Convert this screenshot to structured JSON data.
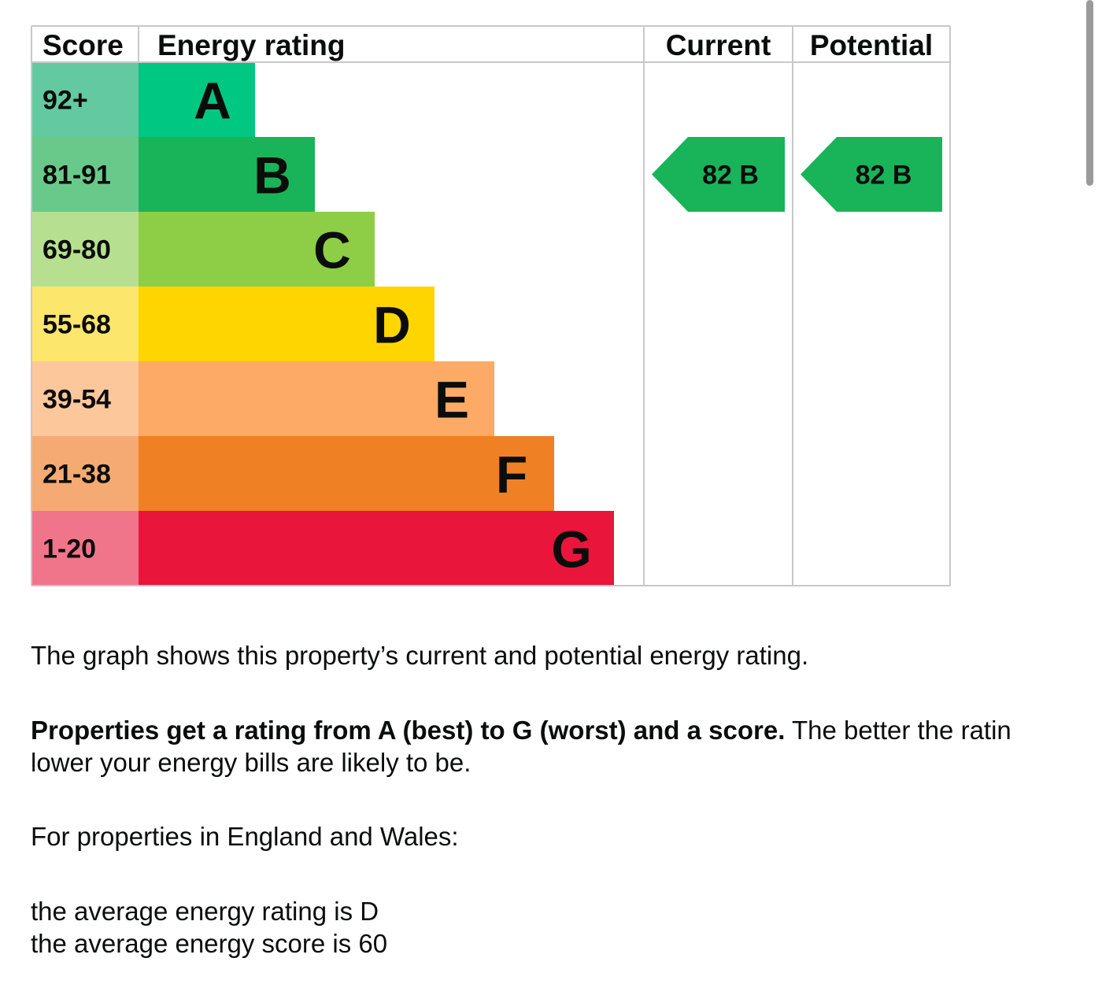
{
  "chart_data": {
    "type": "table",
    "headers": {
      "score": "Score",
      "rating": "Energy rating",
      "current": "Current",
      "potential": "Potential"
    },
    "bands": [
      {
        "range": "92+",
        "letter": "A",
        "color": "#00c781",
        "score_color": "#63c9a0"
      },
      {
        "range": "81-91",
        "letter": "B",
        "color": "#19b459",
        "score_color": "#69c98b"
      },
      {
        "range": "69-80",
        "letter": "C",
        "color": "#8dce46",
        "score_color": "#b6e08f"
      },
      {
        "range": "55-68",
        "letter": "D",
        "color": "#ffd500",
        "score_color": "#fde66c"
      },
      {
        "range": "39-54",
        "letter": "E",
        "color": "#fcaa65",
        "score_color": "#fdc79c"
      },
      {
        "range": "21-38",
        "letter": "F",
        "color": "#ef8023",
        "score_color": "#f4aa72"
      },
      {
        "range": "1-20",
        "letter": "G",
        "color": "#e9153b",
        "score_color": "#f0758b"
      }
    ],
    "current": {
      "score": 82,
      "letter": "B",
      "label": "82  B",
      "color": "#19b459"
    },
    "potential": {
      "score": 82,
      "letter": "B",
      "label": "82  B",
      "color": "#19b459"
    }
  },
  "text": {
    "intro": "The graph shows this property’s current and potential energy rating.",
    "rating_bold": "Properties get a rating from A (best) to G (worst) and a score.",
    "rating_rest_line1": " The better the ratin",
    "rating_line2": "lower your energy bills are likely to be.",
    "region": "For properties in England and Wales:",
    "avg_rating": "the average energy rating is D",
    "avg_score": "the average energy score is 60"
  }
}
